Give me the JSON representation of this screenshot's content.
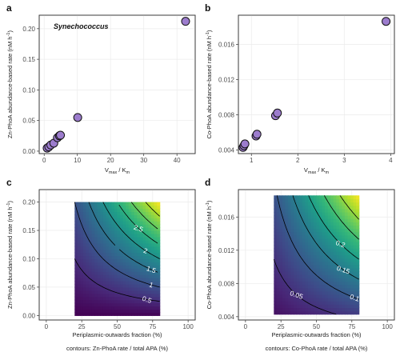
{
  "chart_data": [
    {
      "panel": "a",
      "type": "scatter",
      "annotation": "Synechococcus",
      "xlabel_main": "V",
      "xlabel_sub1": "max",
      "xlabel_mid": " / K",
      "xlabel_sub2": "m",
      "ylabel_main": "Zn-PhoA abundance-based rate (nM h",
      "ylabel_sup": "-1",
      "ylabel_end": ")",
      "xlim": [
        -1.5,
        45.5
      ],
      "ylim": [
        -0.004,
        0.222
      ],
      "xticks": [
        0,
        10,
        20,
        30,
        40
      ],
      "yticks": [
        0.0,
        0.05,
        0.1,
        0.15,
        0.2
      ],
      "ytick_labels": [
        "0.00",
        "0.05",
        "0.10",
        "0.15",
        "0.20"
      ],
      "grid": true,
      "marker_color": "#9c7ccd",
      "points": [
        {
          "x": 0.9,
          "y": 0.005
        },
        {
          "x": 1.4,
          "y": 0.007
        },
        {
          "x": 2.0,
          "y": 0.01
        },
        {
          "x": 2.9,
          "y": 0.013
        },
        {
          "x": 4.0,
          "y": 0.022
        },
        {
          "x": 4.6,
          "y": 0.025
        },
        {
          "x": 4.9,
          "y": 0.026
        },
        {
          "x": 10.1,
          "y": 0.055
        },
        {
          "x": 42.6,
          "y": 0.212
        }
      ]
    },
    {
      "panel": "b",
      "type": "scatter",
      "xlabel_main": "V",
      "xlabel_sub1": "max",
      "xlabel_mid": " / K",
      "xlabel_sub2": "m",
      "ylabel_main": "Co-PhoA abundance-based rate (nM h",
      "ylabel_sup": "-1",
      "ylabel_end": ")",
      "xlim": [
        0.72,
        4.08
      ],
      "ylim": [
        0.0036,
        0.0193
      ],
      "xticks": [
        1,
        2,
        3,
        4
      ],
      "yticks": [
        0.004,
        0.008,
        0.012,
        0.016
      ],
      "ytick_labels": [
        "0.004",
        "0.008",
        "0.012",
        "0.016"
      ],
      "grid": true,
      "marker_color": "#9c7ccd",
      "points": [
        {
          "x": 0.82,
          "y": 0.0043
        },
        {
          "x": 0.84,
          "y": 0.0045
        },
        {
          "x": 0.86,
          "y": 0.0047
        },
        {
          "x": 1.1,
          "y": 0.0056
        },
        {
          "x": 1.12,
          "y": 0.0058
        },
        {
          "x": 1.52,
          "y": 0.0079
        },
        {
          "x": 1.56,
          "y": 0.0082
        },
        {
          "x": 3.9,
          "y": 0.0186
        }
      ]
    },
    {
      "panel": "c",
      "type": "heatmap",
      "xlabel": "Periplasmic-outwards fraction (%)",
      "ylabel_main": "Zn-PhoA abundance-based rate (nM h",
      "ylabel_sup": "-1",
      "ylabel_end": ")",
      "caption": "contours: Zn-PhoA rate / total APA (%)",
      "xlim": [
        -5,
        105
      ],
      "ylim": [
        -0.008,
        0.222
      ],
      "xticks": [
        0,
        25,
        50,
        75,
        100
      ],
      "yticks": [
        0.0,
        0.05,
        0.1,
        0.15,
        0.2
      ],
      "ytick_labels": [
        "0.00",
        "0.05",
        "0.10",
        "0.15",
        "0.20"
      ],
      "field_xrange": [
        20,
        80
      ],
      "field_yrange": [
        0.0,
        0.2
      ],
      "field_max": 4.0,
      "contour_levels": [
        0.5,
        1,
        1.5,
        2,
        2.5,
        3,
        3.5
      ],
      "contour_labels": [
        {
          "text": "0.5",
          "level": 0.5,
          "x": 71
        },
        {
          "text": "1",
          "level": 1,
          "x": 74
        },
        {
          "text": "1.5",
          "level": 1.5,
          "x": 74
        },
        {
          "text": "2",
          "level": 2,
          "x": 70
        },
        {
          "text": "2.5",
          "level": 2.5,
          "x": 65
        }
      ],
      "grid": true
    },
    {
      "panel": "d",
      "type": "heatmap",
      "xlabel": "Periplasmic-outwards fraction (%)",
      "ylabel_main": "Co-PhoA abundance-based rate (nM h",
      "ylabel_sup": "-1",
      "ylabel_end": ")",
      "caption": "contours: Co-PhoA rate / total APA (%)",
      "xlim": [
        -5,
        105
      ],
      "ylim": [
        0.0036,
        0.0193
      ],
      "xticks": [
        0,
        25,
        50,
        75,
        100
      ],
      "yticks": [
        0.004,
        0.008,
        0.012,
        0.016
      ],
      "ytick_labels": [
        "0.004",
        "0.008",
        "0.012",
        "0.016"
      ],
      "field_xrange": [
        20,
        80
      ],
      "field_yrange": [
        0.0043,
        0.0186
      ],
      "field_max": 0.36,
      "contour_levels": [
        0.05,
        0.1,
        0.15,
        0.2,
        0.25,
        0.3
      ],
      "contour_labels": [
        {
          "text": "0.05",
          "level": 0.05,
          "x": 36
        },
        {
          "text": "0.1",
          "level": 0.1,
          "x": 77
        },
        {
          "text": "0.15",
          "level": 0.15,
          "x": 69
        },
        {
          "text": "0.2",
          "level": 0.2,
          "x": 67
        }
      ],
      "grid": true
    }
  ],
  "panel_tags": [
    "a",
    "b",
    "c",
    "d"
  ]
}
